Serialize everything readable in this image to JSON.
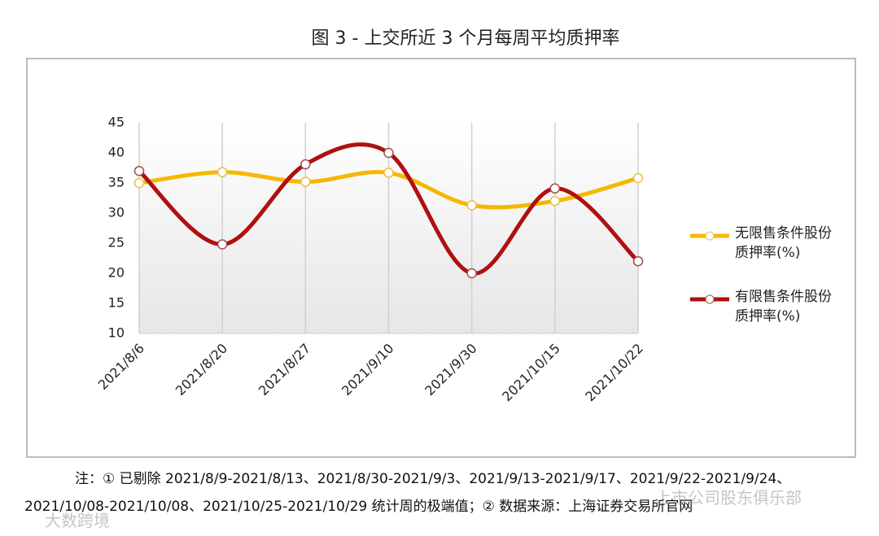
{
  "chart_data": {
    "type": "line",
    "title": "图 3 -  上交所近 3 个月每周平均质押率",
    "categories": [
      "2021/8/6",
      "2021/8/20",
      "2021/8/27",
      "2021/9/10",
      "2021/9/30",
      "2021/10/15",
      "2021/10/22"
    ],
    "series": [
      {
        "name": "无限售条件股份质押率(%)",
        "color": "#f5b800",
        "values": [
          35,
          36.8,
          35.2,
          36.7,
          31.3,
          32,
          35.8
        ]
      },
      {
        "name": "有限售条件股份质押率(%)",
        "color": "#b01010",
        "values": [
          37,
          24.8,
          38.1,
          40,
          20,
          34.1,
          22
        ]
      }
    ],
    "ylim": [
      10,
      45
    ],
    "yticks": [
      10,
      15,
      20,
      25,
      30,
      35,
      40,
      45
    ],
    "grid": true,
    "legend": "right"
  },
  "footnote": "注：①  已剔除 2021/8/9-2021/8/13、2021/8/30-2021/9/3、2021/9/13-2021/9/17、2021/9/22-2021/9/24、2021/10/08-2021/10/08、2021/10/25-2021/10/29 统计周的极端值；②  数据来源：上海证券交易所官网",
  "watermarks": [
    "上市公司股东俱乐部",
    "大数跨境"
  ]
}
